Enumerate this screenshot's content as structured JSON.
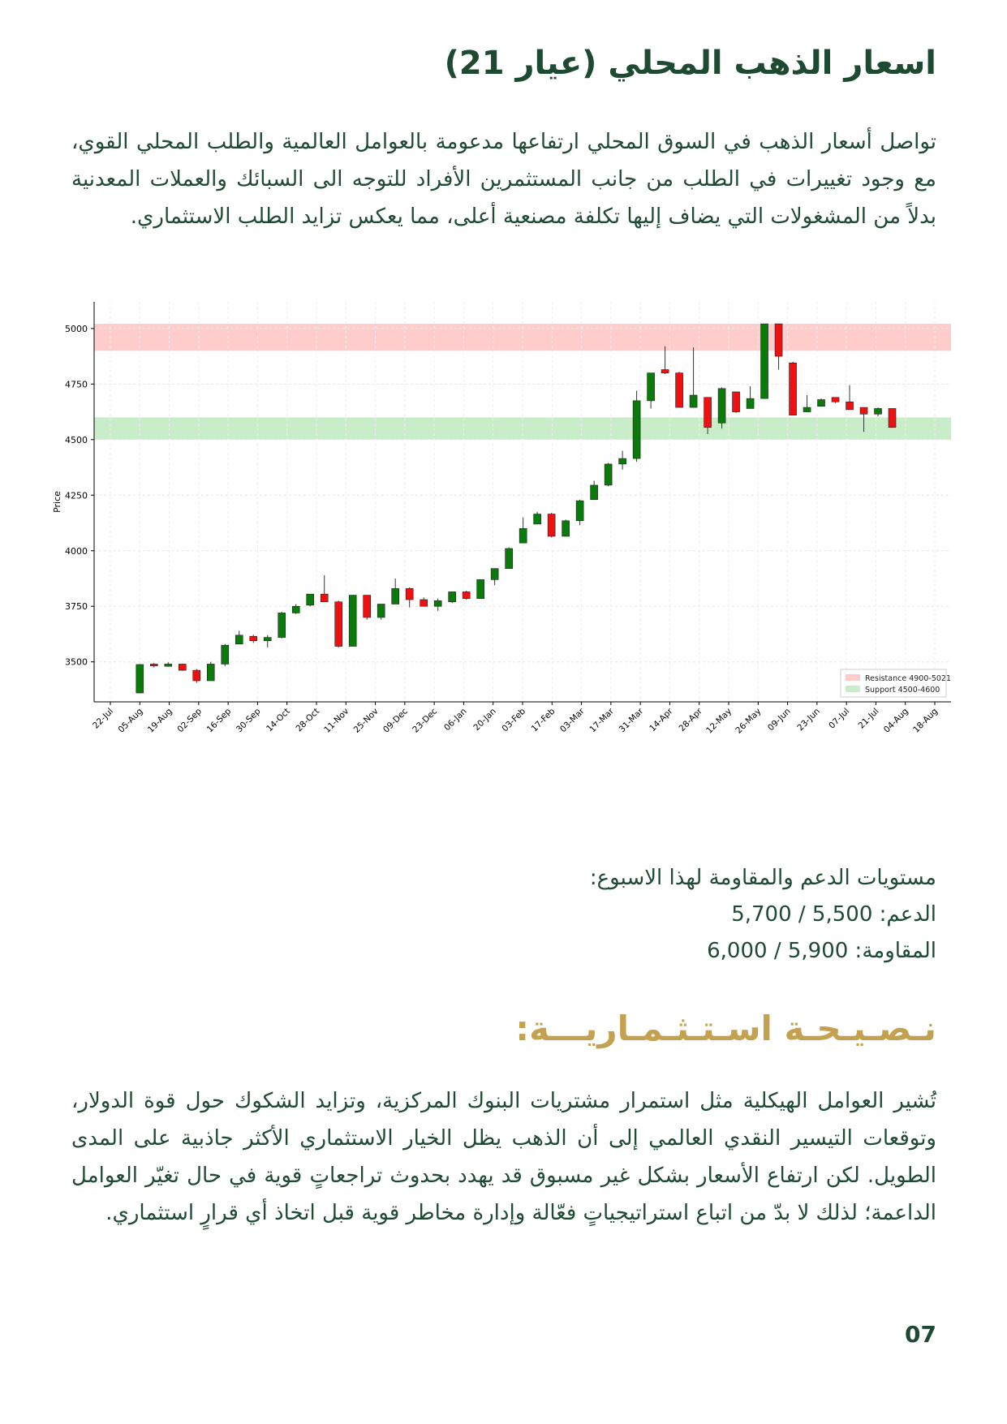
{
  "page": {
    "title": "اسعار الذهب المحلي (عيار 21)",
    "intro": "تواصل أسعار الذهب في السوق المحلي ارتفاعها مدعومة بالعوامل العالمية والطلب المحلي القوي، مع وجود تغييرات في الطلب من جانب المستثمرين الأفراد للتوجه الى السبائك والعملات المعدنية بدلاً من المشغولات التي يضاف إليها تكلفة مصنعية أعلى، مما يعكس تزايد الطلب الاستثماري.",
    "levels_heading": "مستويات الدعم والمقاومة لهذا الاسبوع:",
    "support_line": "الدعم: 5,500 / 5,700",
    "resistance_line": "المقاومة: 5,900 / 6,000",
    "advice_title": "نـصـيـحـة اسـتـثـمـاريـــة:",
    "advice_text": "تُشير العوامل الهيكلية مثل استمرار مشتريات البنوك المركزية، وتزايد الشكوك حول قوة الدولار، وتوقعات التيسير النقدي العالمي إلى أن الذهب يظل الخيار الاستثماري الأكثر جاذبية على المدى الطويل. لكن ارتفاع الأسعار بشكل غير مسبوق قد يهدد بحدوث تراجعاتٍ قوية في حال تغيّر العوامل الداعمة؛ لذلك لا بدّ من اتباع استراتيجياتٍ فعّالة وإدارة مخاطر قوية قبل اتخاذ أي قرارٍ استثماري.",
    "page_number": "07"
  },
  "chart_data": {
    "type": "candlestick",
    "ylabel": "Price",
    "ylim": [
      3320,
      5120
    ],
    "yticks": [
      3500,
      3750,
      4000,
      4250,
      4500,
      4750,
      5000
    ],
    "xticks": [
      "22-Jul",
      "05-Aug",
      "19-Aug",
      "02-Sep",
      "16-Sep",
      "30-Sep",
      "14-Oct",
      "28-Oct",
      "11-Nov",
      "25-Nov",
      "09-Dec",
      "23-Dec",
      "06-Jan",
      "20-Jan",
      "03-Feb",
      "17-Feb",
      "03-Mar",
      "17-Mar",
      "31-Mar",
      "14-Apr",
      "28-Apr",
      "12-May",
      "26-May",
      "09-Jun",
      "23-Jun",
      "07-Jul",
      "21-Jul",
      "04-Aug",
      "18-Aug"
    ],
    "grid": true,
    "colors": {
      "up": "#0a7a0a",
      "down": "#ee1111",
      "resistance": "#ffcccc",
      "support": "#c9ecc9"
    },
    "bands": [
      {
        "label": "Resistance 4900-5021",
        "from": 4900,
        "to": 5021,
        "kind": "resistance"
      },
      {
        "label": "Support 4500-4600",
        "from": 4500,
        "to": 4600,
        "kind": "support"
      }
    ],
    "legend_position": "bottom-right",
    "candles": [
      {
        "open": 3360,
        "high": 3490,
        "low": 3360,
        "close": 3488
      },
      {
        "open": 3490,
        "high": 3495,
        "low": 3475,
        "close": 3482
      },
      {
        "open": 3480,
        "high": 3498,
        "low": 3478,
        "close": 3490
      },
      {
        "open": 3490,
        "high": 3492,
        "low": 3460,
        "close": 3462
      },
      {
        "open": 3462,
        "high": 3468,
        "low": 3405,
        "close": 3415
      },
      {
        "open": 3415,
        "high": 3500,
        "low": 3415,
        "close": 3490
      },
      {
        "open": 3490,
        "high": 3580,
        "low": 3480,
        "close": 3575
      },
      {
        "open": 3580,
        "high": 3640,
        "low": 3580,
        "close": 3620
      },
      {
        "open": 3615,
        "high": 3622,
        "low": 3585,
        "close": 3595
      },
      {
        "open": 3595,
        "high": 3620,
        "low": 3565,
        "close": 3610
      },
      {
        "open": 3610,
        "high": 3725,
        "low": 3605,
        "close": 3720
      },
      {
        "open": 3720,
        "high": 3760,
        "low": 3715,
        "close": 3750
      },
      {
        "open": 3755,
        "high": 3805,
        "low": 3750,
        "close": 3805
      },
      {
        "open": 3805,
        "high": 3890,
        "low": 3770,
        "close": 3770
      },
      {
        "open": 3770,
        "high": 3775,
        "low": 3565,
        "close": 3570
      },
      {
        "open": 3570,
        "high": 3800,
        "low": 3570,
        "close": 3800
      },
      {
        "open": 3800,
        "high": 3800,
        "low": 3690,
        "close": 3700
      },
      {
        "open": 3700,
        "high": 3760,
        "low": 3690,
        "close": 3760
      },
      {
        "open": 3760,
        "high": 3875,
        "low": 3760,
        "close": 3830
      },
      {
        "open": 3830,
        "high": 3835,
        "low": 3745,
        "close": 3780
      },
      {
        "open": 3780,
        "high": 3790,
        "low": 3750,
        "close": 3750
      },
      {
        "open": 3750,
        "high": 3785,
        "low": 3730,
        "close": 3775
      },
      {
        "open": 3770,
        "high": 3815,
        "low": 3765,
        "close": 3815
      },
      {
        "open": 3815,
        "high": 3820,
        "low": 3780,
        "close": 3785
      },
      {
        "open": 3785,
        "high": 3870,
        "low": 3785,
        "close": 3870
      },
      {
        "open": 3870,
        "high": 3920,
        "low": 3845,
        "close": 3920
      },
      {
        "open": 3920,
        "high": 4015,
        "low": 3920,
        "close": 4010
      },
      {
        "open": 4035,
        "high": 4150,
        "low": 4035,
        "close": 4100
      },
      {
        "open": 4120,
        "high": 4175,
        "low": 4120,
        "close": 4165
      },
      {
        "open": 4165,
        "high": 4170,
        "low": 4060,
        "close": 4065
      },
      {
        "open": 4065,
        "high": 4140,
        "low": 4065,
        "close": 4135
      },
      {
        "open": 4135,
        "high": 4230,
        "low": 4115,
        "close": 4225
      },
      {
        "open": 4230,
        "high": 4315,
        "low": 4230,
        "close": 4295
      },
      {
        "open": 4295,
        "high": 4395,
        "low": 4290,
        "close": 4390
      },
      {
        "open": 4390,
        "high": 4450,
        "low": 4365,
        "close": 4415
      },
      {
        "open": 4415,
        "high": 4720,
        "low": 4400,
        "close": 4675
      },
      {
        "open": 4675,
        "high": 4800,
        "low": 4640,
        "close": 4800
      },
      {
        "open": 4815,
        "high": 4920,
        "low": 4795,
        "close": 4800
      },
      {
        "open": 4800,
        "high": 4805,
        "low": 4645,
        "close": 4645
      },
      {
        "open": 4645,
        "high": 4915,
        "low": 4645,
        "close": 4700
      },
      {
        "open": 4690,
        "high": 4690,
        "low": 4525,
        "close": 4555
      },
      {
        "open": 4575,
        "high": 4735,
        "low": 4550,
        "close": 4730
      },
      {
        "open": 4715,
        "high": 4715,
        "low": 4620,
        "close": 4625
      },
      {
        "open": 4640,
        "high": 4740,
        "low": 4640,
        "close": 4685
      },
      {
        "open": 4685,
        "high": 5021,
        "low": 4685,
        "close": 5021
      },
      {
        "open": 5021,
        "high": 5021,
        "low": 4815,
        "close": 4875
      },
      {
        "open": 4845,
        "high": 4850,
        "low": 4610,
        "close": 4610
      },
      {
        "open": 4625,
        "high": 4700,
        "low": 4625,
        "close": 4645
      },
      {
        "open": 4650,
        "high": 4685,
        "low": 4650,
        "close": 4680
      },
      {
        "open": 4690,
        "high": 4690,
        "low": 4665,
        "close": 4670
      },
      {
        "open": 4670,
        "high": 4745,
        "low": 4635,
        "close": 4635
      },
      {
        "open": 4645,
        "high": 4645,
        "low": 4535,
        "close": 4615
      },
      {
        "open": 4615,
        "high": 4645,
        "low": 4605,
        "close": 4640
      },
      {
        "open": 4640,
        "high": 4640,
        "low": 4555,
        "close": 4555
      }
    ]
  }
}
